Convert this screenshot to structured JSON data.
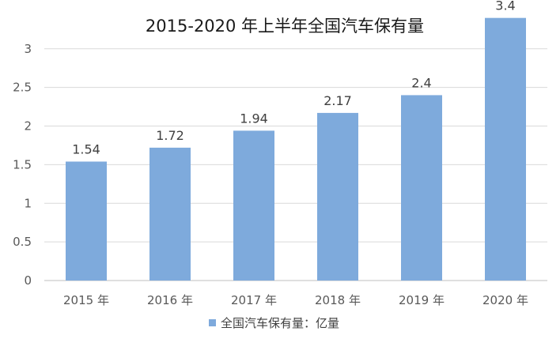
{
  "chart_data": {
    "type": "bar",
    "title": "2015-2020 年上半年全国汽车保有量",
    "categories": [
      "2015 年",
      "2016 年",
      "2017 年",
      "2018 年",
      "2019 年",
      "2020 年"
    ],
    "series": [
      {
        "name": "全国汽车保有量：亿量",
        "values": [
          1.54,
          1.72,
          1.94,
          2.17,
          2.4,
          3.4
        ],
        "data_labels": [
          "1.54",
          "1.72",
          "1.94",
          "2.17",
          "2.4",
          "3.4"
        ],
        "color": "#7eaadc"
      }
    ],
    "y_ticks": [
      "0",
      "0.5",
      "1",
      "1.5",
      "2",
      "2.5",
      "3"
    ],
    "ylim": [
      0,
      3.1
    ],
    "xlabel": "",
    "ylabel": "",
    "grid": true,
    "legend_position": "bottom"
  }
}
